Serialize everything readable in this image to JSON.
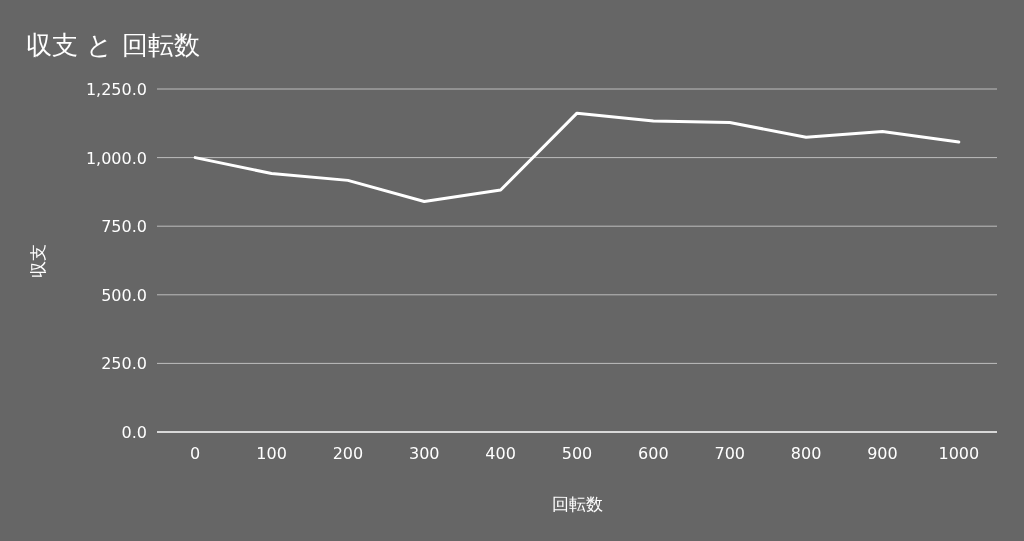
{
  "chart_data": {
    "type": "line",
    "title": "収支 と 回転数",
    "xlabel": "回転数",
    "ylabel": "収支",
    "categories": [
      "0",
      "100",
      "200",
      "300",
      "400",
      "500",
      "600",
      "700",
      "800",
      "900",
      "1000"
    ],
    "values": [
      1000,
      942,
      917,
      840,
      882,
      1162,
      1133,
      1128,
      1074,
      1095,
      1057
    ],
    "color": "#ffffff",
    "ylim": [
      0,
      1250
    ],
    "yticks": [
      {
        "value": 0,
        "label": "0.0"
      },
      {
        "value": 250,
        "label": "250.0"
      },
      {
        "value": 500,
        "label": "500.0"
      },
      {
        "value": 750,
        "label": "750.0"
      },
      {
        "value": 1000,
        "label": "1,000.0"
      },
      {
        "value": 1250,
        "label": "1,250.0"
      }
    ],
    "grid": "y"
  }
}
